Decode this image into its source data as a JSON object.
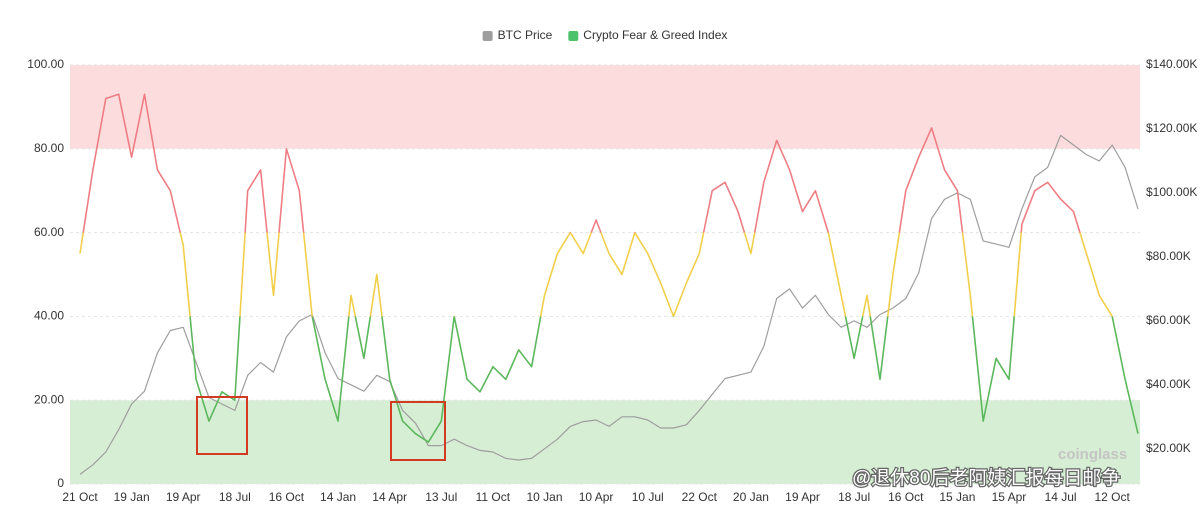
{
  "chart_data": {
    "type": "line",
    "categories": [
      "21 Oct",
      null,
      null,
      null,
      "19 Jan",
      null,
      null,
      null,
      "19 Apr",
      null,
      null,
      null,
      "18 Jul",
      null,
      null,
      null,
      "16 Oct",
      null,
      null,
      null,
      "14 Jan",
      null,
      null,
      null,
      "14 Apr",
      null,
      null,
      null,
      "13 Jul",
      null,
      null,
      null,
      "11 Oct",
      null,
      null,
      null,
      "10 Jan",
      null,
      null,
      null,
      "10 Apr",
      null,
      null,
      null,
      "10 Jul",
      null,
      null,
      null,
      "22 Oct",
      null,
      null,
      null,
      "20 Jan",
      null,
      null,
      null,
      "19 Apr",
      null,
      null,
      null,
      "18 Jul",
      null,
      null,
      null,
      "16 Oct",
      null,
      null,
      null,
      "15 Jan",
      null,
      null,
      null,
      "15 Apr",
      null,
      null,
      null,
      "14 Jul",
      null,
      null,
      null,
      "12 Oct",
      null,
      null
    ],
    "series": [
      {
        "name": "BTC Price",
        "color": "#9e9e9e",
        "axis": "y2",
        "values": [
          12000,
          15000,
          19000,
          26000,
          34000,
          38000,
          50000,
          57000,
          58000,
          47000,
          36000,
          34000,
          32000,
          43000,
          47000,
          44000,
          55000,
          60000,
          62000,
          50000,
          42000,
          40000,
          38000,
          43000,
          41000,
          32000,
          28000,
          21000,
          21000,
          23000,
          21000,
          19500,
          19000,
          17000,
          16500,
          17000,
          20000,
          23000,
          27000,
          28500,
          29000,
          27000,
          30000,
          30000,
          29000,
          26500,
          26500,
          27500,
          32000,
          37000,
          42000,
          43000,
          44000,
          52000,
          67000,
          70000,
          64000,
          68000,
          62000,
          58000,
          60000,
          58000,
          62000,
          64000,
          67000,
          75000,
          92000,
          98000,
          100000,
          98000,
          85000,
          84000,
          83000,
          95000,
          105000,
          108000,
          118000,
          115000,
          112000,
          110000,
          115000,
          108000,
          95000
        ]
      },
      {
        "name": "Crypto Fear & Greed Index",
        "color": "#4cc36a",
        "color_zones": [
          {
            "min": 60,
            "color": "#ef7d84"
          },
          {
            "min": 40,
            "color": "#f2cf4a"
          },
          {
            "min": 0,
            "color": "#5cb85c"
          }
        ],
        "values": [
          55,
          75,
          92,
          93,
          78,
          93,
          75,
          70,
          57,
          25,
          15,
          22,
          20,
          70,
          75,
          45,
          80,
          70,
          40,
          25,
          15,
          45,
          30,
          50,
          25,
          15,
          12,
          10,
          15,
          40,
          25,
          22,
          28,
          25,
          32,
          28,
          45,
          55,
          60,
          55,
          63,
          55,
          50,
          60,
          55,
          48,
          40,
          48,
          55,
          70,
          72,
          65,
          55,
          72,
          82,
          75,
          65,
          70,
          60,
          45,
          30,
          45,
          25,
          50,
          70,
          78,
          85,
          75,
          70,
          45,
          15,
          30,
          25,
          62,
          70,
          72,
          68,
          65,
          55,
          45,
          40,
          25,
          12
        ]
      }
    ],
    "bands": [
      {
        "from": 80,
        "to": 100,
        "color": "#fddcdd"
      },
      {
        "from": 0,
        "to": 20,
        "color": "#d6eed4"
      }
    ],
    "ylim": [
      0,
      100
    ],
    "yticks": [
      {
        "value": 0,
        "label": "0"
      },
      {
        "value": 20,
        "label": "20.00"
      },
      {
        "value": 40,
        "label": "40.00"
      },
      {
        "value": 60,
        "label": "60.00"
      },
      {
        "value": 80,
        "label": "80.00"
      },
      {
        "value": 100,
        "label": "100.00"
      }
    ],
    "y2lim": [
      9000,
      140000
    ],
    "y2ticks": [
      {
        "value": 20000,
        "label": "$20.00K"
      },
      {
        "value": 40000,
        "label": "$40.00K"
      },
      {
        "value": 60000,
        "label": "$60.00K"
      },
      {
        "value": 80000,
        "label": "$80.00K"
      },
      {
        "value": 100000,
        "label": "$100.00K"
      },
      {
        "value": 120000,
        "label": "$120.00K"
      },
      {
        "value": 140000,
        "label": "$140.00K"
      }
    ],
    "grid": true,
    "legend": "top",
    "watermark": "coinglass",
    "overlay_text": "@退休80后老阿姨汇报每日邮争"
  }
}
